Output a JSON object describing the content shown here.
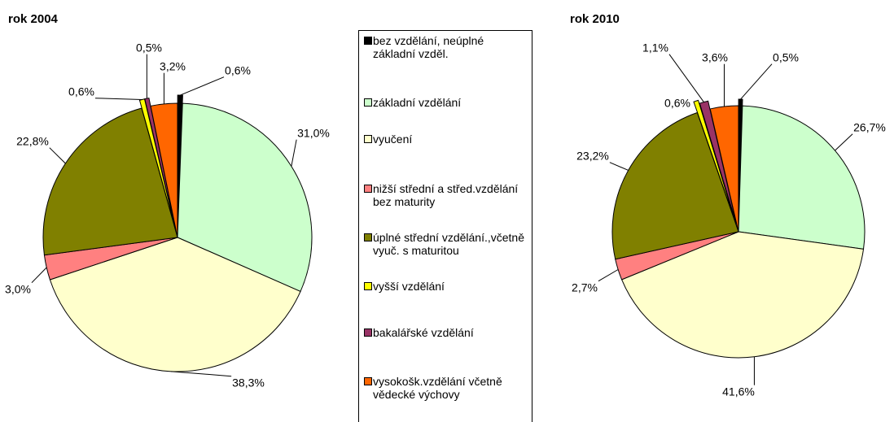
{
  "legend": {
    "categories": [
      "bez vzdělání, neúplné základní vzděl.",
      "základní vzdělání",
      "vyučení",
      "nižší střední a střed.vzdělání bez maturity",
      "úplné střední vzdělání.,včetně vyuč. s maturitou",
      "vyšší vzdělání",
      "bakalářské vzdělání",
      "vysokošk.vzdělání včetně vědecké výchovy"
    ],
    "colors": [
      "#000000",
      "#ccffcc",
      "#ffffcc",
      "#ff8080",
      "#808000",
      "#ffff00",
      "#993366",
      "#ff6600"
    ]
  },
  "chart_data": [
    {
      "type": "pie",
      "title": "rok 2004",
      "values": [
        0.6,
        31.0,
        38.3,
        3.0,
        22.8,
        0.6,
        0.5,
        3.2
      ],
      "value_labels": [
        "0,6%",
        "31,0%",
        "38,3%",
        "3,0%",
        "22,8%",
        "0,6%",
        "0,5%",
        "3,2%"
      ]
    },
    {
      "type": "pie",
      "title": "rok 2010",
      "values": [
        0.5,
        26.7,
        41.6,
        2.7,
        23.2,
        0.6,
        1.1,
        3.6
      ],
      "value_labels": [
        "0,5%",
        "26,7%",
        "41,6%",
        "2,7%",
        "23,2%",
        "0,6%",
        "1,1%",
        "3,6%"
      ]
    }
  ]
}
